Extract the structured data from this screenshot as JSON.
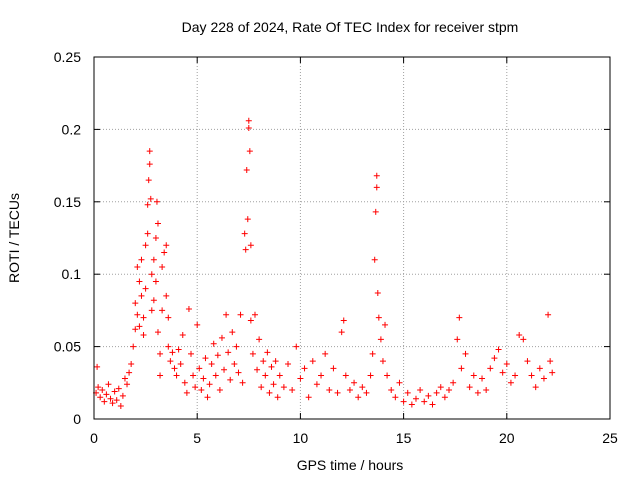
{
  "chart_data": {
    "type": "scatter",
    "title": "Day 228 of 2024, Rate Of TEC Index for receiver stpm",
    "xlabel": "GPS time / hours",
    "ylabel": "ROTI / TECUs",
    "xlim": [
      0,
      25
    ],
    "ylim": [
      0,
      0.25
    ],
    "xticks": [
      0,
      5,
      10,
      15,
      20,
      25
    ],
    "yticks": [
      0,
      0.05,
      0.1,
      0.15,
      0.2,
      0.25
    ],
    "xtick_labels": [
      "0",
      "5",
      "10",
      "15",
      "20",
      "25"
    ],
    "ytick_labels": [
      "0",
      "0.05",
      "0.1",
      "0.15",
      "0.2",
      "0.25"
    ],
    "grid": true,
    "marker": "+",
    "marker_color": "#ff0000",
    "points": [
      [
        0.1,
        0.018
      ],
      [
        0.15,
        0.036
      ],
      [
        0.2,
        0.022
      ],
      [
        0.3,
        0.015
      ],
      [
        0.4,
        0.02
      ],
      [
        0.5,
        0.012
      ],
      [
        0.6,
        0.017
      ],
      [
        0.7,
        0.024
      ],
      [
        0.8,
        0.014
      ],
      [
        0.9,
        0.011
      ],
      [
        1.0,
        0.019
      ],
      [
        1.1,
        0.013
      ],
      [
        1.2,
        0.021
      ],
      [
        1.3,
        0.009
      ],
      [
        1.4,
        0.016
      ],
      [
        1.5,
        0.028
      ],
      [
        1.6,
        0.024
      ],
      [
        1.7,
        0.032
      ],
      [
        1.8,
        0.038
      ],
      [
        1.9,
        0.05
      ],
      [
        2.0,
        0.062
      ],
      [
        2.0,
        0.08
      ],
      [
        2.1,
        0.072
      ],
      [
        2.1,
        0.105
      ],
      [
        2.2,
        0.095
      ],
      [
        2.2,
        0.064
      ],
      [
        2.3,
        0.085
      ],
      [
        2.3,
        0.11
      ],
      [
        2.4,
        0.07
      ],
      [
        2.4,
        0.058
      ],
      [
        2.5,
        0.09
      ],
      [
        2.5,
        0.12
      ],
      [
        2.6,
        0.128
      ],
      [
        2.6,
        0.148
      ],
      [
        2.65,
        0.165
      ],
      [
        2.7,
        0.185
      ],
      [
        2.7,
        0.176
      ],
      [
        2.75,
        0.152
      ],
      [
        2.8,
        0.1
      ],
      [
        2.8,
        0.075
      ],
      [
        2.9,
        0.11
      ],
      [
        2.9,
        0.082
      ],
      [
        3.0,
        0.125
      ],
      [
        3.0,
        0.095
      ],
      [
        3.05,
        0.15
      ],
      [
        3.1,
        0.135
      ],
      [
        3.1,
        0.06
      ],
      [
        3.2,
        0.045
      ],
      [
        3.2,
        0.03
      ],
      [
        3.3,
        0.105
      ],
      [
        3.3,
        0.075
      ],
      [
        3.4,
        0.115
      ],
      [
        3.5,
        0.12
      ],
      [
        3.5,
        0.085
      ],
      [
        3.6,
        0.07
      ],
      [
        3.6,
        0.05
      ],
      [
        3.7,
        0.04
      ],
      [
        3.8,
        0.046
      ],
      [
        3.9,
        0.035
      ],
      [
        4.0,
        0.03
      ],
      [
        4.1,
        0.048
      ],
      [
        4.2,
        0.038
      ],
      [
        4.3,
        0.058
      ],
      [
        4.4,
        0.025
      ],
      [
        4.5,
        0.018
      ],
      [
        4.6,
        0.076
      ],
      [
        4.7,
        0.045
      ],
      [
        4.8,
        0.03
      ],
      [
        4.9,
        0.022
      ],
      [
        5.0,
        0.065
      ],
      [
        5.1,
        0.035
      ],
      [
        5.2,
        0.02
      ],
      [
        5.3,
        0.028
      ],
      [
        5.4,
        0.042
      ],
      [
        5.5,
        0.015
      ],
      [
        5.6,
        0.024
      ],
      [
        5.7,
        0.038
      ],
      [
        5.8,
        0.052
      ],
      [
        5.9,
        0.03
      ],
      [
        6.0,
        0.044
      ],
      [
        6.1,
        0.02
      ],
      [
        6.2,
        0.056
      ],
      [
        6.3,
        0.034
      ],
      [
        6.4,
        0.072
      ],
      [
        6.5,
        0.046
      ],
      [
        6.6,
        0.027
      ],
      [
        6.7,
        0.06
      ],
      [
        6.8,
        0.038
      ],
      [
        6.9,
        0.05
      ],
      [
        7.0,
        0.032
      ],
      [
        7.1,
        0.072
      ],
      [
        7.2,
        0.025
      ],
      [
        7.3,
        0.128
      ],
      [
        7.35,
        0.117
      ],
      [
        7.4,
        0.172
      ],
      [
        7.45,
        0.138
      ],
      [
        7.5,
        0.206
      ],
      [
        7.5,
        0.201
      ],
      [
        7.55,
        0.185
      ],
      [
        7.6,
        0.12
      ],
      [
        7.6,
        0.068
      ],
      [
        7.7,
        0.045
      ],
      [
        7.8,
        0.072
      ],
      [
        7.9,
        0.034
      ],
      [
        8.0,
        0.055
      ],
      [
        8.1,
        0.022
      ],
      [
        8.2,
        0.04
      ],
      [
        8.3,
        0.03
      ],
      [
        8.4,
        0.046
      ],
      [
        8.5,
        0.018
      ],
      [
        8.6,
        0.036
      ],
      [
        8.7,
        0.024
      ],
      [
        8.8,
        0.04
      ],
      [
        8.9,
        0.015
      ],
      [
        9.0,
        0.03
      ],
      [
        9.2,
        0.022
      ],
      [
        9.4,
        0.038
      ],
      [
        9.6,
        0.02
      ],
      [
        9.8,
        0.05
      ],
      [
        10.0,
        0.028
      ],
      [
        10.2,
        0.035
      ],
      [
        10.4,
        0.015
      ],
      [
        10.6,
        0.04
      ],
      [
        10.8,
        0.024
      ],
      [
        11.0,
        0.03
      ],
      [
        11.2,
        0.045
      ],
      [
        11.4,
        0.02
      ],
      [
        11.6,
        0.035
      ],
      [
        11.8,
        0.018
      ],
      [
        12.0,
        0.06
      ],
      [
        12.1,
        0.068
      ],
      [
        12.2,
        0.03
      ],
      [
        12.4,
        0.02
      ],
      [
        12.6,
        0.025
      ],
      [
        12.8,
        0.015
      ],
      [
        13.0,
        0.022
      ],
      [
        13.2,
        0.018
      ],
      [
        13.4,
        0.03
      ],
      [
        13.5,
        0.045
      ],
      [
        13.6,
        0.11
      ],
      [
        13.65,
        0.143
      ],
      [
        13.7,
        0.16
      ],
      [
        13.7,
        0.168
      ],
      [
        13.75,
        0.087
      ],
      [
        13.8,
        0.07
      ],
      [
        13.9,
        0.055
      ],
      [
        14.0,
        0.04
      ],
      [
        14.1,
        0.065
      ],
      [
        14.2,
        0.03
      ],
      [
        14.4,
        0.02
      ],
      [
        14.6,
        0.015
      ],
      [
        14.8,
        0.025
      ],
      [
        15.0,
        0.012
      ],
      [
        15.2,
        0.018
      ],
      [
        15.4,
        0.01
      ],
      [
        15.6,
        0.014
      ],
      [
        15.8,
        0.02
      ],
      [
        16.0,
        0.012
      ],
      [
        16.2,
        0.016
      ],
      [
        16.4,
        0.01
      ],
      [
        16.6,
        0.018
      ],
      [
        16.8,
        0.022
      ],
      [
        17.0,
        0.015
      ],
      [
        17.2,
        0.02
      ],
      [
        17.4,
        0.025
      ],
      [
        17.6,
        0.055
      ],
      [
        17.7,
        0.07
      ],
      [
        17.8,
        0.035
      ],
      [
        18.0,
        0.045
      ],
      [
        18.2,
        0.022
      ],
      [
        18.4,
        0.03
      ],
      [
        18.6,
        0.018
      ],
      [
        18.8,
        0.028
      ],
      [
        19.0,
        0.02
      ],
      [
        19.2,
        0.035
      ],
      [
        19.4,
        0.042
      ],
      [
        19.6,
        0.048
      ],
      [
        19.8,
        0.032
      ],
      [
        20.0,
        0.038
      ],
      [
        20.2,
        0.025
      ],
      [
        20.4,
        0.03
      ],
      [
        20.6,
        0.058
      ],
      [
        20.8,
        0.055
      ],
      [
        21.0,
        0.04
      ],
      [
        21.2,
        0.03
      ],
      [
        21.4,
        0.022
      ],
      [
        21.6,
        0.035
      ],
      [
        21.8,
        0.028
      ],
      [
        22.0,
        0.072
      ],
      [
        22.1,
        0.04
      ],
      [
        22.2,
        0.032
      ]
    ]
  }
}
